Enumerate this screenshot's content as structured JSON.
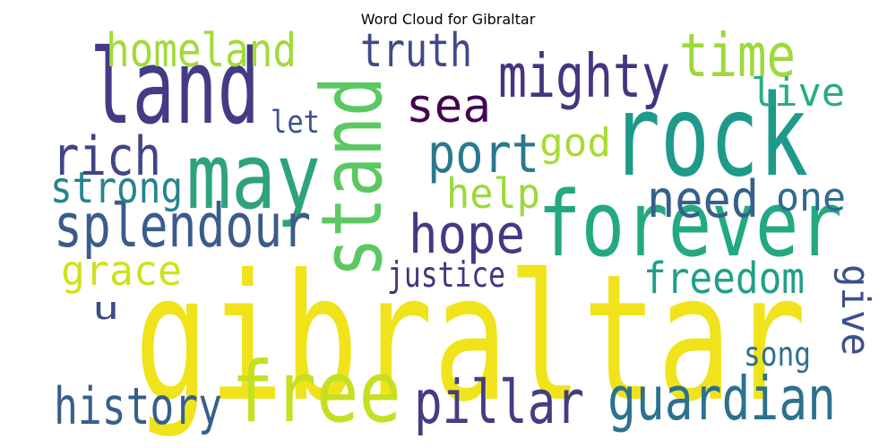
{
  "title": "Word Cloud for Gibraltar",
  "words": [
    {
      "text": "gibraltar",
      "color": "#f0e31b"
    },
    {
      "text": "land",
      "color": "#453a84"
    },
    {
      "text": "rock",
      "color": "#1e9a8a"
    },
    {
      "text": "forever",
      "color": "#23a982"
    },
    {
      "text": "stand",
      "color": "#5cc863"
    },
    {
      "text": "may",
      "color": "#2ea37a"
    },
    {
      "text": "free",
      "color": "#c6e021"
    },
    {
      "text": "guardian",
      "color": "#2c718e"
    },
    {
      "text": "pillar",
      "color": "#433d84"
    },
    {
      "text": "splendour",
      "color": "#3b5c8b"
    },
    {
      "text": "history",
      "color": "#375f8c"
    },
    {
      "text": "mighty",
      "color": "#463480"
    },
    {
      "text": "homeland",
      "color": "#a2da37"
    },
    {
      "text": "time",
      "color": "#9dd93b"
    },
    {
      "text": "rich",
      "color": "#414487"
    },
    {
      "text": "hope",
      "color": "#443982"
    },
    {
      "text": "need",
      "color": "#35608d"
    },
    {
      "text": "port",
      "color": "#2a788e"
    },
    {
      "text": "sea",
      "color": "#440154"
    },
    {
      "text": "truth",
      "color": "#3e4a89"
    },
    {
      "text": "freedom",
      "color": "#1fa088"
    },
    {
      "text": "strong",
      "color": "#25838e"
    },
    {
      "text": "grace",
      "color": "#d0e11c"
    },
    {
      "text": "live",
      "color": "#27ad81"
    },
    {
      "text": "one",
      "color": "#2f6b8e"
    },
    {
      "text": "help",
      "color": "#9bd93c"
    },
    {
      "text": "god",
      "color": "#a8db34"
    },
    {
      "text": "give",
      "color": "#3b518b"
    },
    {
      "text": "justice",
      "color": "#46337f"
    },
    {
      "text": "song",
      "color": "#2d708e"
    },
    {
      "text": "let",
      "color": "#3b518b"
    },
    {
      "text": "u",
      "color": "#3e4a89"
    }
  ]
}
